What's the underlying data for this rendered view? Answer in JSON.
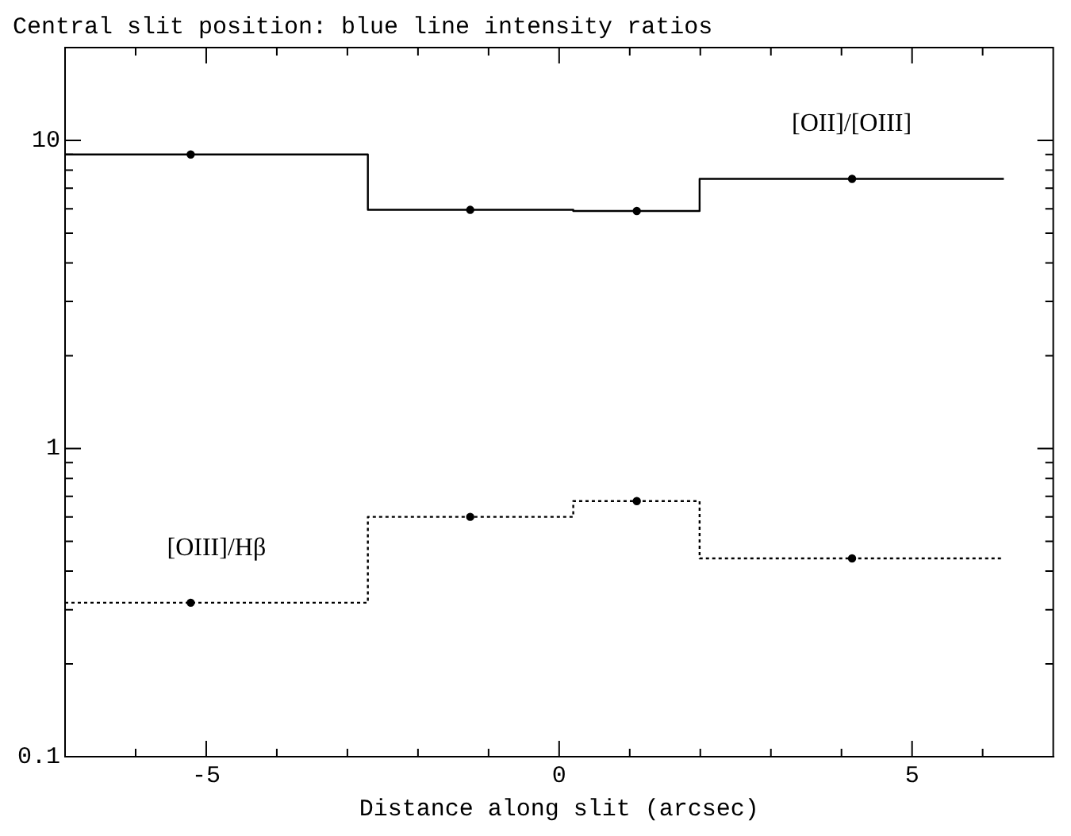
{
  "chart_data": {
    "type": "step",
    "title": "Central slit position: blue line intensity ratios",
    "xlabel": "Distance along slit (arcsec)",
    "log": "y",
    "grid": false,
    "legend": false,
    "xlim": [
      -7,
      7
    ],
    "xticks": [
      {
        "value": -6,
        "label": null
      },
      -5,
      {
        "value": -4,
        "label": null
      },
      {
        "value": -3,
        "label": null
      },
      {
        "value": -2,
        "label": null
      },
      {
        "value": -1,
        "label": null
      },
      0,
      {
        "value": 1,
        "label": null
      },
      {
        "value": 2,
        "label": null
      },
      {
        "value": 3,
        "label": null
      },
      {
        "value": 4,
        "label": null
      },
      5,
      {
        "value": 6,
        "label": null
      }
    ],
    "ylim": [
      0.1,
      20
    ],
    "yticks": [
      0.1,
      {
        "value": 0.2,
        "label": null
      },
      {
        "value": 0.3,
        "label": null
      },
      {
        "value": 0.4,
        "label": null
      },
      {
        "value": 0.5,
        "label": null
      },
      {
        "value": 0.6,
        "label": null
      },
      {
        "value": 0.7,
        "label": null
      },
      {
        "value": 0.8,
        "label": null
      },
      {
        "value": 0.9,
        "label": null
      },
      1,
      {
        "value": 2,
        "label": null
      },
      {
        "value": 3,
        "label": null
      },
      {
        "value": 4,
        "label": null
      },
      {
        "value": 5,
        "label": null
      },
      {
        "value": 6,
        "label": null
      },
      {
        "value": 7,
        "label": null
      },
      {
        "value": 8,
        "label": null
      },
      {
        "value": 9,
        "label": null
      },
      10,
      {
        "value": 20,
        "label": null
      }
    ],
    "series": [
      {
        "name": "[OII]/[OIII]",
        "color": "#000000",
        "x": [
          -7,
          -2.71,
          0.2,
          1.99,
          6.3
        ],
        "values": [
          9.0,
          5.95,
          5.9,
          7.5,
          7.5
        ],
        "line_style": "solid",
        "marker": "none"
      },
      {
        "name": "[OIII]/Hβ",
        "color": "#000000",
        "x": [
          -7,
          -2.71,
          0.2,
          1.99,
          6.3
        ],
        "values": [
          0.316,
          0.6,
          0.675,
          0.44,
          0.44
        ],
        "line_style": "dotted",
        "marker": "none"
      },
      {
        "type": "scatter",
        "color": "#000000",
        "x": [
          -5.22,
          -1.26,
          1.1,
          4.15
        ],
        "values": [
          9.0,
          5.95,
          5.9,
          7.5
        ],
        "marker": "circle"
      },
      {
        "type": "scatter",
        "color": "#000000",
        "x": [
          -5.22,
          -1.26,
          1.1,
          4.15
        ],
        "values": [
          0.316,
          0.6,
          0.675,
          0.44
        ],
        "marker": "circle"
      }
    ]
  }
}
